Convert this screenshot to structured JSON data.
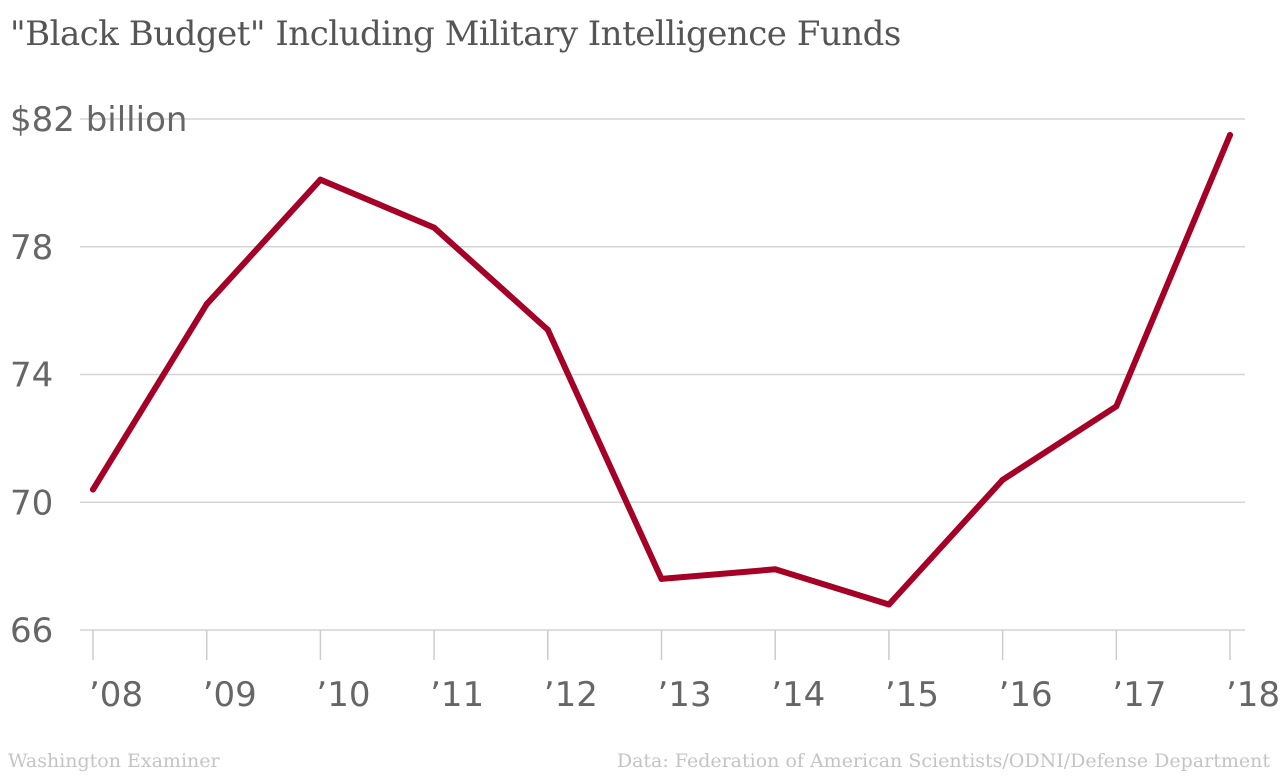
{
  "chart_data": {
    "type": "line",
    "title": "\"Black Budget\" Including Military Intelligence Funds",
    "xlabel": "",
    "ylabel": "",
    "categories": [
      "’08",
      "’09",
      "’10",
      "’11",
      "’12",
      "’13",
      "’14",
      "’15",
      "’16",
      "’17",
      "’18"
    ],
    "series": [
      {
        "name": "Black Budget",
        "color": "#a50026",
        "values": [
          70.4,
          76.2,
          80.1,
          78.6,
          75.4,
          67.6,
          67.9,
          66.8,
          70.7,
          73.0,
          81.5
        ]
      }
    ],
    "yticks": [
      66,
      70,
      74,
      78,
      82
    ],
    "ytick_labels": [
      "66",
      "70",
      "74",
      "78",
      "$82 billion"
    ],
    "ylim": [
      66,
      82
    ],
    "grid": true
  },
  "footer": {
    "source": "Washington Examiner",
    "credit": "Data: Federation of American Scientists/ODNI/Defense Department"
  }
}
